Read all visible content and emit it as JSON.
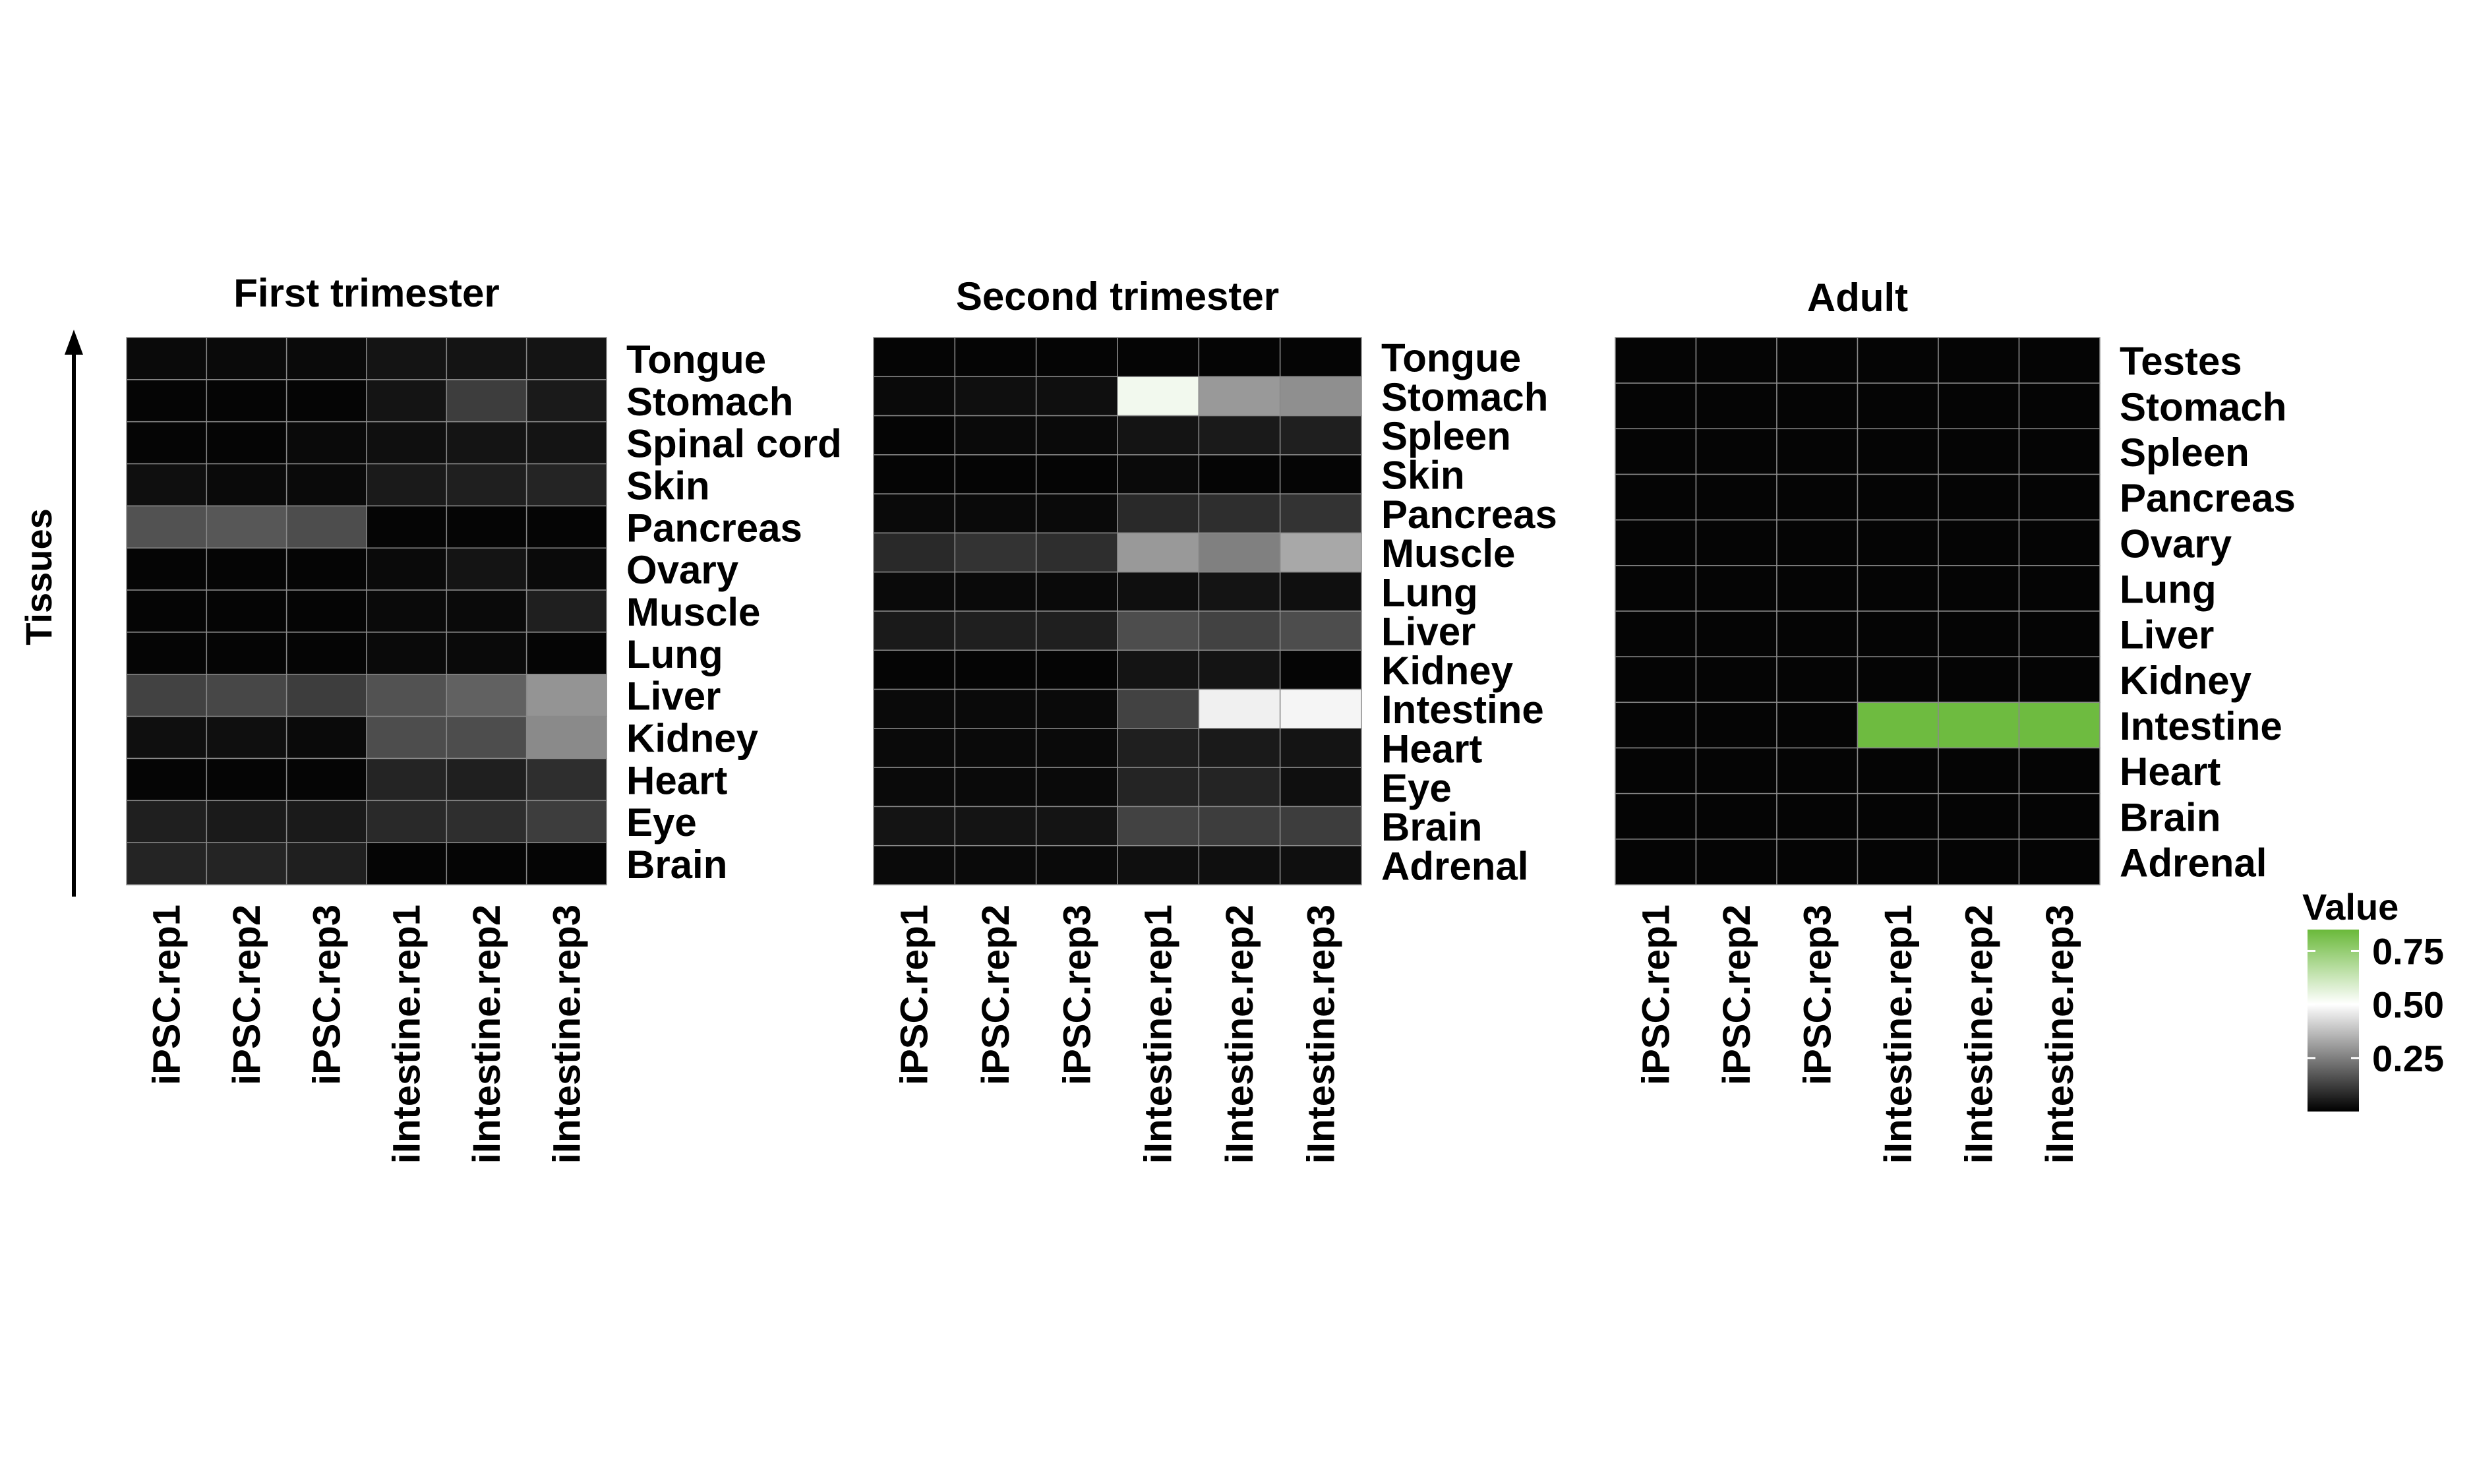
{
  "figure": {
    "yaxis_label": "Tissues"
  },
  "legend": {
    "title": "Value",
    "ticks": [
      0.25,
      0.5,
      0.75
    ],
    "tick_labels": [
      "0.25",
      "0.50",
      "0.75"
    ],
    "range": [
      0,
      0.85
    ],
    "colors": [
      "#000000",
      "#ffffff",
      "#6ab93a"
    ]
  },
  "chart_data": [
    {
      "type": "heatmap",
      "title": "First trimester",
      "columns": [
        "iPSC.rep1",
        "iPSC.rep2",
        "iPSC.rep3",
        "iIntestine.rep1",
        "iIntestine.rep2",
        "iIntestine.rep3"
      ],
      "rows": [
        "Tongue",
        "Stomach",
        "Spinal cord",
        "Skin",
        "Pancreas",
        "Ovary",
        "Muscle",
        "Lung",
        "Liver",
        "Kidney",
        "Heart",
        "Eye",
        "Brain"
      ],
      "values": [
        [
          0.02,
          0.02,
          0.02,
          0.04,
          0.04,
          0.04
        ],
        [
          0.01,
          0.01,
          0.01,
          0.04,
          0.12,
          0.05
        ],
        [
          0.01,
          0.01,
          0.02,
          0.03,
          0.04,
          0.04
        ],
        [
          0.03,
          0.02,
          0.02,
          0.05,
          0.06,
          0.07
        ],
        [
          0.16,
          0.17,
          0.15,
          0.01,
          0.01,
          0.01
        ],
        [
          0.01,
          0.01,
          0.01,
          0.02,
          0.04,
          0.02
        ],
        [
          0.01,
          0.01,
          0.01,
          0.02,
          0.02,
          0.06
        ],
        [
          0.01,
          0.01,
          0.01,
          0.02,
          0.02,
          0.01
        ],
        [
          0.13,
          0.14,
          0.12,
          0.16,
          0.19,
          0.29
        ],
        [
          0.03,
          0.03,
          0.02,
          0.15,
          0.15,
          0.27
        ],
        [
          0.01,
          0.01,
          0.01,
          0.07,
          0.06,
          0.09
        ],
        [
          0.06,
          0.05,
          0.05,
          0.08,
          0.09,
          0.12
        ],
        [
          0.07,
          0.07,
          0.06,
          0.01,
          0.01,
          0.01
        ]
      ]
    },
    {
      "type": "heatmap",
      "title": "Second trimester",
      "columns": [
        "iPSC.rep1",
        "iPSC.rep2",
        "iPSC.rep3",
        "iIntestine.rep1",
        "iIntestine.rep2",
        "iIntestine.rep3"
      ],
      "rows": [
        "Tongue",
        "Stomach",
        "Spleen",
        "Skin",
        "Pancreas",
        "Muscle",
        "Lung",
        "Liver",
        "Kidney",
        "Intestine",
        "Heart",
        "Eye",
        "Brain",
        "Adrenal"
      ],
      "values": [
        [
          0.01,
          0.01,
          0.01,
          0.01,
          0.01,
          0.01
        ],
        [
          0.02,
          0.03,
          0.03,
          0.53,
          0.3,
          0.28
        ],
        [
          0.01,
          0.02,
          0.02,
          0.04,
          0.05,
          0.06
        ],
        [
          0.01,
          0.01,
          0.01,
          0.02,
          0.01,
          0.01
        ],
        [
          0.02,
          0.02,
          0.02,
          0.08,
          0.09,
          0.1
        ],
        [
          0.08,
          0.1,
          0.09,
          0.3,
          0.25,
          0.33
        ],
        [
          0.02,
          0.02,
          0.02,
          0.03,
          0.04,
          0.03
        ],
        [
          0.05,
          0.06,
          0.06,
          0.15,
          0.13,
          0.15
        ],
        [
          0.01,
          0.01,
          0.01,
          0.04,
          0.04,
          0.01
        ],
        [
          0.02,
          0.02,
          0.02,
          0.13,
          0.47,
          0.48
        ],
        [
          0.02,
          0.02,
          0.02,
          0.06,
          0.05,
          0.04
        ],
        [
          0.02,
          0.02,
          0.02,
          0.07,
          0.07,
          0.03
        ],
        [
          0.04,
          0.04,
          0.04,
          0.13,
          0.12,
          0.12
        ],
        [
          0.02,
          0.02,
          0.02,
          0.03,
          0.03,
          0.03
        ]
      ]
    },
    {
      "type": "heatmap",
      "title": "Adult",
      "columns": [
        "iPSC.rep1",
        "iPSC.rep2",
        "iPSC.rep3",
        "iIntestine.rep1",
        "iIntestine.rep2",
        "iIntestine.rep3"
      ],
      "rows": [
        "Testes",
        "Stomach",
        "Spleen",
        "Pancreas",
        "Ovary",
        "Lung",
        "Liver",
        "Kidney",
        "Intestine",
        "Heart",
        "Brain",
        "Adrenal"
      ],
      "values": [
        [
          0.01,
          0.01,
          0.01,
          0.01,
          0.01,
          0.01
        ],
        [
          0.01,
          0.01,
          0.01,
          0.01,
          0.01,
          0.01
        ],
        [
          0.01,
          0.01,
          0.01,
          0.01,
          0.01,
          0.01
        ],
        [
          0.01,
          0.01,
          0.01,
          0.01,
          0.01,
          0.01
        ],
        [
          0.01,
          0.01,
          0.01,
          0.01,
          0.01,
          0.01
        ],
        [
          0.01,
          0.01,
          0.01,
          0.01,
          0.01,
          0.01
        ],
        [
          0.01,
          0.01,
          0.01,
          0.01,
          0.01,
          0.01
        ],
        [
          0.01,
          0.01,
          0.01,
          0.01,
          0.01,
          0.01
        ],
        [
          0.01,
          0.01,
          0.01,
          0.84,
          0.84,
          0.84
        ],
        [
          0.01,
          0.01,
          0.01,
          0.01,
          0.01,
          0.01
        ],
        [
          0.01,
          0.01,
          0.01,
          0.01,
          0.01,
          0.01
        ],
        [
          0.01,
          0.01,
          0.01,
          0.01,
          0.01,
          0.01
        ]
      ]
    }
  ]
}
